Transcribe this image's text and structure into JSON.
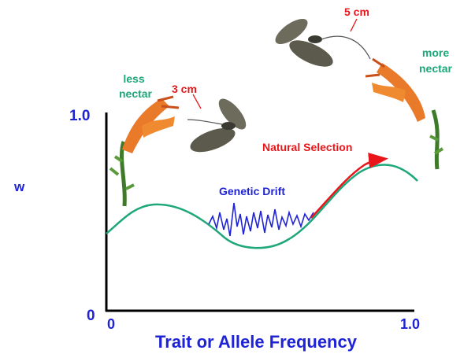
{
  "y_axis": {
    "label": "w",
    "ticks": [
      "1.0",
      "0"
    ]
  },
  "x_axis": {
    "label": "Trait or Allele Frequency",
    "ticks": [
      "0",
      "1.0"
    ]
  },
  "annotations": {
    "less_nectar": [
      "less",
      "nectar"
    ],
    "more_nectar": [
      "more",
      "nectar"
    ],
    "short_tongue": "3 cm",
    "long_tongue": "5 cm",
    "genetic_drift": "Genetic Drift",
    "natural_selection": "Natural Selection"
  }
}
